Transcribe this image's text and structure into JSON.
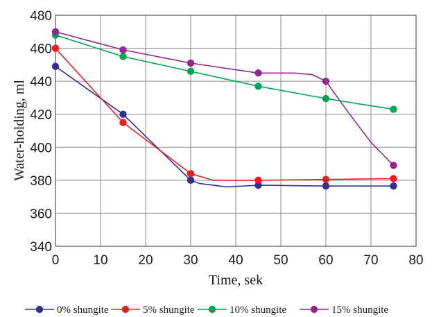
{
  "chart_data": {
    "type": "line",
    "xlabel": "Time, sek",
    "ylabel": "Water-holding, ml",
    "xlim": [
      0,
      80
    ],
    "ylim": [
      340,
      480
    ],
    "xticks": [
      0,
      10,
      20,
      30,
      40,
      50,
      60,
      70,
      80
    ],
    "yticks": [
      340,
      360,
      380,
      400,
      420,
      440,
      460,
      480
    ],
    "grid": true,
    "legend_position": "bottom",
    "series": [
      {
        "name": "0% shungite",
        "color": "#2e3192",
        "markers": [
          [
            0,
            449
          ],
          [
            15,
            420
          ],
          [
            30,
            380
          ],
          [
            45,
            377
          ],
          [
            60,
            376.5
          ],
          [
            75,
            376.5
          ]
        ],
        "curve": [
          [
            0,
            449
          ],
          [
            15,
            420
          ],
          [
            30,
            380
          ],
          [
            32,
            378
          ],
          [
            38,
            376
          ],
          [
            45,
            377
          ],
          [
            60,
            376.5
          ],
          [
            75,
            376.5
          ]
        ]
      },
      {
        "name": "5% shungite",
        "color": "#ed1c24",
        "markers": [
          [
            0,
            460
          ],
          [
            15,
            415
          ],
          [
            30,
            384
          ],
          [
            45,
            380
          ],
          [
            60,
            380.5
          ],
          [
            75,
            381
          ]
        ],
        "curve": [
          [
            0,
            460
          ],
          [
            15,
            415
          ],
          [
            30,
            384
          ],
          [
            35,
            380
          ],
          [
            45,
            380
          ],
          [
            60,
            380.5
          ],
          [
            75,
            381
          ]
        ]
      },
      {
        "name": "10% shungite",
        "color": "#00a651",
        "markers": [
          [
            0,
            468
          ],
          [
            15,
            455
          ],
          [
            30,
            446
          ],
          [
            45,
            437
          ],
          [
            60,
            429.5
          ],
          [
            75,
            423
          ]
        ],
        "curve": [
          [
            0,
            468
          ],
          [
            15,
            455
          ],
          [
            30,
            446
          ],
          [
            45,
            437
          ],
          [
            60,
            429.5
          ],
          [
            75,
            423
          ]
        ]
      },
      {
        "name": "15% shungite",
        "color": "#92278f",
        "markers": [
          [
            0,
            470
          ],
          [
            15,
            459
          ],
          [
            30,
            451
          ],
          [
            45,
            445
          ],
          [
            60,
            440
          ],
          [
            75,
            389
          ]
        ],
        "curve": [
          [
            0,
            470
          ],
          [
            15,
            459
          ],
          [
            30,
            451
          ],
          [
            45,
            445
          ],
          [
            53,
            445
          ],
          [
            57,
            444
          ],
          [
            60,
            440
          ],
          [
            65,
            421
          ],
          [
            70,
            403
          ],
          [
            75,
            389
          ]
        ]
      }
    ]
  }
}
